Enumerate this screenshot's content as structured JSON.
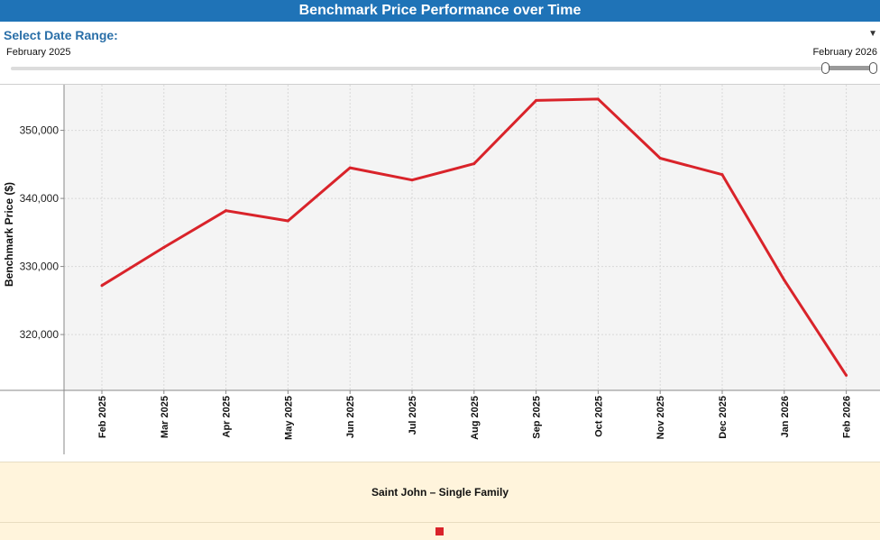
{
  "header": {
    "title": "Benchmark Price Performance over Time"
  },
  "date_range": {
    "label": "Select Date Range:",
    "start_label": "February 2025",
    "end_label": "February 2026",
    "selected_fraction_start": 0.95,
    "selected_fraction_end": 1.0
  },
  "footer": {
    "series_label": "Saint John – Single Family"
  },
  "colors": {
    "header": "#1f73b7",
    "series": "#d9232a",
    "footer_bg": "#fff4dc"
  },
  "chart_data": {
    "type": "line",
    "title": "",
    "xlabel": "",
    "ylabel": "Benchmark Price ($)",
    "categories": [
      "Feb 2025",
      "Mar 2025",
      "Apr 2025",
      "May 2025",
      "Jun 2025",
      "Jul 2025",
      "Aug 2025",
      "Sep 2025",
      "Oct 2025",
      "Nov 2025",
      "Dec 2025",
      "Jan 2026",
      "Feb 2026"
    ],
    "series": [
      {
        "values": [
          327200,
          332800,
          338200,
          336700,
          344500,
          342700,
          345100,
          354400,
          354600,
          345900,
          343500,
          328000,
          314000
        ]
      }
    ],
    "ylim": [
      311800,
      356700
    ],
    "yticks": [
      320000,
      330000,
      340000,
      350000
    ],
    "ytick_labels": [
      "320,000",
      "330,000",
      "340,000",
      "350,000"
    ],
    "grid": true
  }
}
